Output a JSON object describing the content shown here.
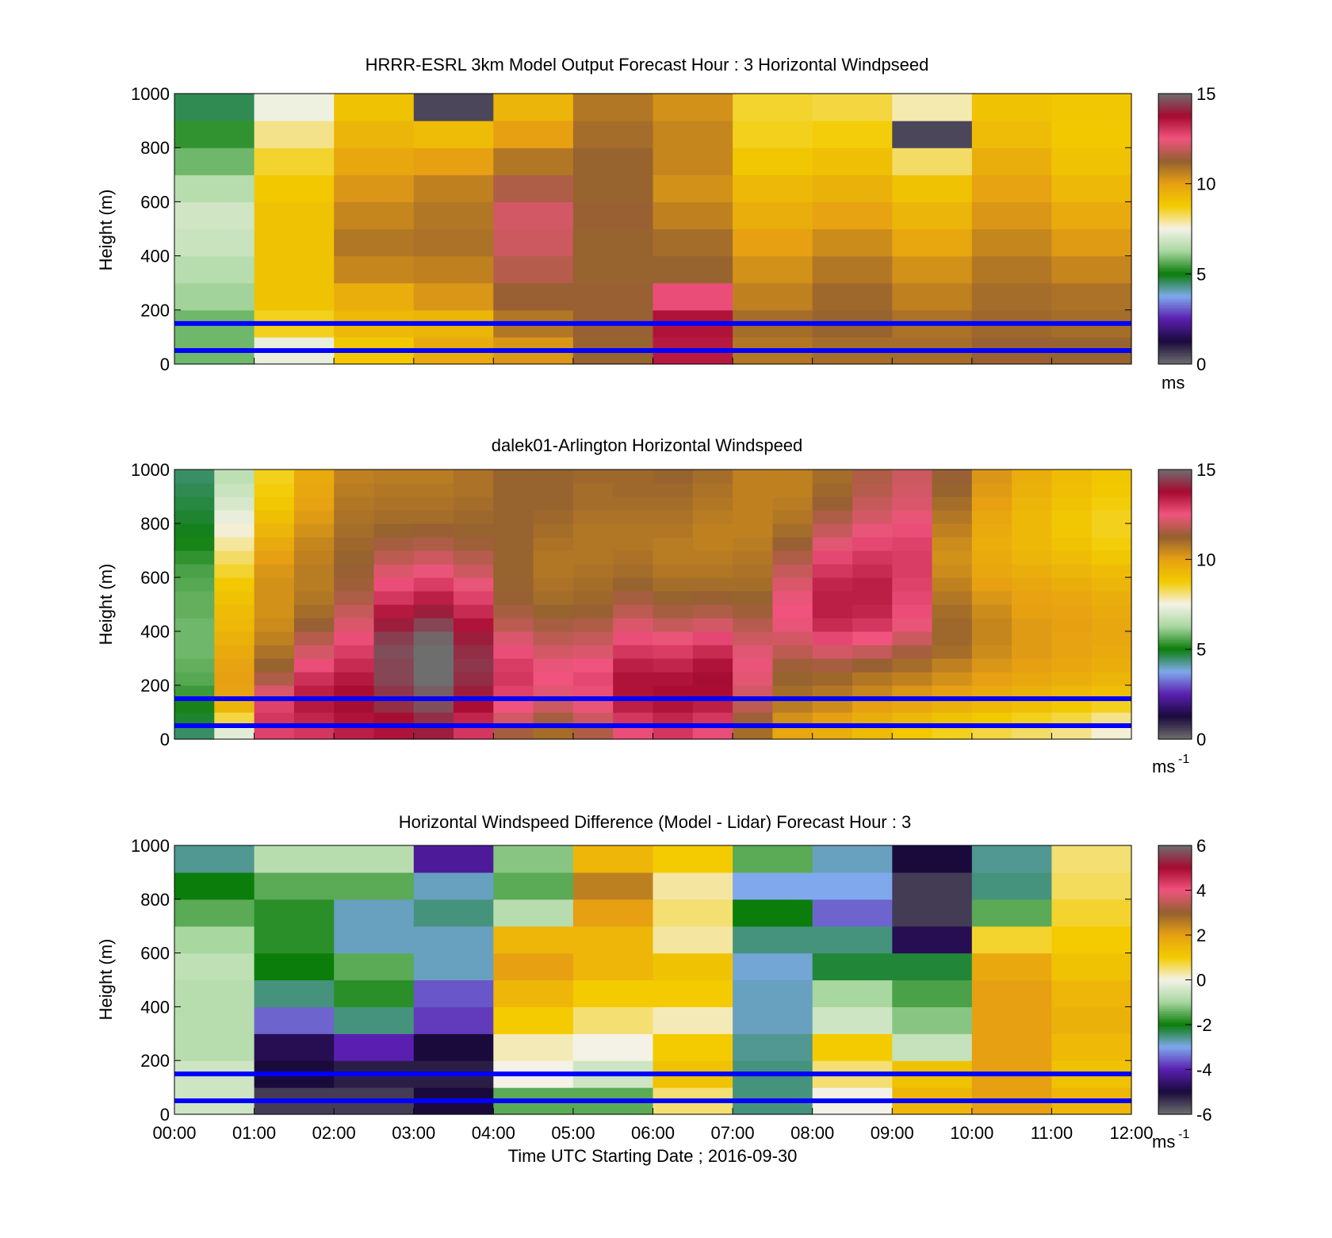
{
  "x_axis": {
    "ticks": [
      "00:00",
      "01:00",
      "02:00",
      "03:00",
      "04:00",
      "05:00",
      "06:00",
      "07:00",
      "08:00",
      "09:00",
      "10:00",
      "11:00",
      "12:00"
    ],
    "label": "Time UTC  Starting Date ; 2016-09-30"
  },
  "colorbar_palette": [
    "#6e6e6e",
    "#1a0a3c",
    "#5a1fb0",
    "#7fa9ec",
    "#0b7d0b",
    "#a8d7a0",
    "#f4f2e6",
    "#f3cb00",
    "#e6a012",
    "#946030",
    "#f0547e",
    "#a70a30",
    "#6e6e6e"
  ],
  "diff_palette": [
    "#6e6e6e",
    "#1a0a3c",
    "#5a1fb0",
    "#7fa9ec",
    "#0b7d0b",
    "#a8d7a0",
    "#f4f2e6",
    "#f3cb00",
    "#e6a012",
    "#946030",
    "#f0547e",
    "#a70a30",
    "#6e6e6e"
  ],
  "ref_line_color": "#0000ff",
  "chart_data": [
    {
      "type": "heatmap",
      "title": "HRRR-ESRL 3km Model Output   Forecast Hour : 3 Horizontal Windpseed",
      "ylabel": "Height (m)",
      "ylim": [
        0,
        1000
      ],
      "yticks": [
        "0",
        "200",
        "400",
        "600",
        "800",
        "1000"
      ],
      "colorbar": {
        "ticks": [
          "0",
          "5",
          "10",
          "15"
        ],
        "unit": "ms",
        "range": [
          0,
          15
        ]
      },
      "reference_lines_m": [
        50,
        150
      ],
      "x_hours": [
        0,
        1,
        2,
        3,
        4,
        5,
        6,
        7,
        8,
        9,
        10,
        11
      ],
      "heights_m": [
        50,
        150,
        250,
        350,
        450,
        550,
        650,
        750,
        850,
        950
      ],
      "values_ms": [
        [
          5.8,
          7.3,
          8.8,
          9.7,
          10.2,
          11.2,
          13.5,
          10.8,
          11.0,
          11.0,
          11.3,
          11.2
        ],
        [
          5.8,
          8.6,
          9.3,
          9.4,
          10.8,
          11.3,
          13.6,
          11.0,
          11.2,
          10.9,
          11.1,
          11.0
        ],
        [
          6.2,
          9.0,
          9.6,
          10.2,
          11.3,
          11.3,
          12.6,
          10.6,
          11.1,
          10.6,
          11.0,
          10.9
        ],
        [
          6.5,
          9.0,
          10.5,
          10.6,
          11.7,
          11.2,
          11.2,
          10.3,
          10.8,
          10.3,
          10.8,
          10.5
        ],
        [
          6.8,
          9.0,
          10.8,
          10.9,
          12.0,
          11.2,
          11.0,
          10.0,
          10.4,
          9.8,
          10.5,
          10.1
        ],
        [
          6.9,
          9.0,
          10.5,
          10.8,
          12.1,
          11.3,
          10.6,
          9.6,
          9.9,
          9.4,
          10.2,
          9.7
        ],
        [
          6.5,
          8.8,
          10.2,
          10.6,
          11.6,
          11.2,
          10.3,
          9.3,
          9.5,
          9.0,
          9.9,
          9.3
        ],
        [
          5.8,
          8.5,
          9.8,
          10.0,
          10.8,
          11.2,
          10.5,
          8.9,
          9.1,
          8.2,
          9.6,
          9.0
        ],
        [
          5.3,
          8.0,
          9.4,
          9.2,
          10.0,
          11.0,
          10.5,
          8.6,
          8.7,
          0.5,
          9.2,
          8.8
        ],
        [
          4.6,
          7.4,
          9.0,
          0.5,
          9.4,
          10.8,
          10.3,
          8.5,
          8.4,
          7.8,
          9.0,
          8.9
        ]
      ]
    },
    {
      "type": "heatmap",
      "title": "dalek01-Arlington  Horizontal Windspeed",
      "ylabel": "Height (m)",
      "ylim": [
        0,
        1000
      ],
      "yticks": [
        "0",
        "200",
        "400",
        "600",
        "800",
        "1000"
      ],
      "colorbar": {
        "ticks": [
          "0",
          "5",
          "10",
          "15"
        ],
        "unit": "ms",
        "unit_exp": "-1",
        "range": [
          0,
          15
        ]
      },
      "reference_lines_m": [
        50,
        150
      ],
      "x_hours": [
        0.25,
        0.75,
        1.25,
        1.75,
        2.25,
        2.75,
        3.25,
        3.75,
        4.25,
        4.75,
        5.25,
        5.75,
        6.25,
        6.75,
        7.25,
        7.75,
        8.25,
        8.75,
        9.25,
        9.75,
        10.25,
        10.75,
        11.25,
        11.75
      ],
      "heights_m": [
        25,
        75,
        125,
        175,
        225,
        275,
        325,
        375,
        425,
        475,
        525,
        575,
        625,
        675,
        725,
        775,
        825,
        875,
        925,
        975
      ],
      "values_ms": [
        [
          4.5,
          7.2,
          12.8,
          13.0,
          13.4,
          13.6,
          14.0,
          13.0,
          11.5,
          11.0,
          11.6,
          12.6,
          13.0,
          12.6,
          11.0,
          9.8,
          9.6,
          9.2,
          8.8,
          8.6,
          8.4,
          8.2,
          8.0,
          7.6
        ],
        [
          4.8,
          8.4,
          13.0,
          13.3,
          13.6,
          13.8,
          14.2,
          13.3,
          12.1,
          11.5,
          12.0,
          13.0,
          13.3,
          13.0,
          11.4,
          10.3,
          10.0,
          9.6,
          9.3,
          9.0,
          8.8,
          8.6,
          8.4,
          8.0
        ],
        [
          5.1,
          9.4,
          12.8,
          13.5,
          13.8,
          14.2,
          14.6,
          13.7,
          12.5,
          12.0,
          12.4,
          13.4,
          13.6,
          13.4,
          11.8,
          10.7,
          10.4,
          10.0,
          9.8,
          9.5,
          9.3,
          9.1,
          8.8,
          8.6
        ],
        [
          5.4,
          9.9,
          12.2,
          13.4,
          13.7,
          14.3,
          14.8,
          14.0,
          12.8,
          12.3,
          12.6,
          13.6,
          13.7,
          13.7,
          12.1,
          11.0,
          10.8,
          10.5,
          10.2,
          10.0,
          9.7,
          9.5,
          9.3,
          9.1
        ],
        [
          5.6,
          10.0,
          11.6,
          13.1,
          13.5,
          14.5,
          15.0,
          14.2,
          13.0,
          12.5,
          12.7,
          13.6,
          13.6,
          13.8,
          12.3,
          11.2,
          11.1,
          10.8,
          10.6,
          10.3,
          10.0,
          9.8,
          9.6,
          9.4
        ],
        [
          5.7,
          9.9,
          11.2,
          12.6,
          13.2,
          14.5,
          15.0,
          14.3,
          12.9,
          12.4,
          12.5,
          13.4,
          13.3,
          13.6,
          12.4,
          11.4,
          11.5,
          11.3,
          11.0,
          10.6,
          10.2,
          10.0,
          9.8,
          9.6
        ],
        [
          5.8,
          9.7,
          10.9,
          12.1,
          12.9,
          14.6,
          15.0,
          14.2,
          12.6,
          12.1,
          12.2,
          13.0,
          12.9,
          13.2,
          12.3,
          11.8,
          12.1,
          11.9,
          11.5,
          11.0,
          10.4,
          10.1,
          9.9,
          9.7
        ],
        [
          5.8,
          9.5,
          10.6,
          11.7,
          12.6,
          14.4,
          14.9,
          14.0,
          12.2,
          11.8,
          11.9,
          12.6,
          12.4,
          12.7,
          12.0,
          12.1,
          12.7,
          12.5,
          12.0,
          11.1,
          10.5,
          10.1,
          9.9,
          9.8
        ],
        [
          5.8,
          9.3,
          10.4,
          11.3,
          12.2,
          14.0,
          14.5,
          13.6,
          11.8,
          11.5,
          11.6,
          12.2,
          11.9,
          12.1,
          11.7,
          12.4,
          13.2,
          13.0,
          12.4,
          11.1,
          10.5,
          10.1,
          10.0,
          9.8
        ],
        [
          5.7,
          9.2,
          10.3,
          11.0,
          11.9,
          13.5,
          14.0,
          13.2,
          11.5,
          11.2,
          11.3,
          11.8,
          11.5,
          11.6,
          11.4,
          12.5,
          13.4,
          13.3,
          12.6,
          11.0,
          10.4,
          10.0,
          9.9,
          9.7
        ],
        [
          5.7,
          9.0,
          10.3,
          10.8,
          11.6,
          13.0,
          13.4,
          12.8,
          11.3,
          11.0,
          11.1,
          11.5,
          11.2,
          11.3,
          11.2,
          12.4,
          13.4,
          13.4,
          12.7,
          10.8,
          10.2,
          9.9,
          9.8,
          9.6
        ],
        [
          5.6,
          8.8,
          10.3,
          10.7,
          11.4,
          12.6,
          12.9,
          12.4,
          11.2,
          10.9,
          11.0,
          11.2,
          11.0,
          11.0,
          11.0,
          12.2,
          13.3,
          13.4,
          12.8,
          10.6,
          10.0,
          9.8,
          9.6,
          9.4
        ],
        [
          5.5,
          8.5,
          10.2,
          10.7,
          11.3,
          12.2,
          12.4,
          12.0,
          11.2,
          10.8,
          10.9,
          11.0,
          10.8,
          10.8,
          10.9,
          11.9,
          13.0,
          13.2,
          12.9,
          10.4,
          9.8,
          9.6,
          9.4,
          9.2
        ],
        [
          5.3,
          8.2,
          10.0,
          10.6,
          11.2,
          11.8,
          12.0,
          11.7,
          11.2,
          10.8,
          10.8,
          10.9,
          10.7,
          10.7,
          10.8,
          11.6,
          12.7,
          13.0,
          12.9,
          10.3,
          9.7,
          9.4,
          9.2,
          8.9
        ],
        [
          5.1,
          7.9,
          9.7,
          10.5,
          11.1,
          11.5,
          11.6,
          11.4,
          11.2,
          10.9,
          10.8,
          10.8,
          10.7,
          10.6,
          10.7,
          11.3,
          12.3,
          12.7,
          12.8,
          10.4,
          9.6,
          9.3,
          9.0,
          8.7
        ],
        [
          4.9,
          7.6,
          9.4,
          10.3,
          11.0,
          11.2,
          11.3,
          11.2,
          11.2,
          11.0,
          10.8,
          10.8,
          10.8,
          10.6,
          10.6,
          11.0,
          11.9,
          12.4,
          12.6,
          10.6,
          9.7,
          9.3,
          8.9,
          8.6
        ],
        [
          4.8,
          7.3,
          9.1,
          10.1,
          10.9,
          11.0,
          11.0,
          11.1,
          11.2,
          11.1,
          10.9,
          10.9,
          10.9,
          10.7,
          10.6,
          10.8,
          11.6,
          12.1,
          12.4,
          10.8,
          9.8,
          9.3,
          8.9,
          8.6
        ],
        [
          4.7,
          7.0,
          8.9,
          9.9,
          10.8,
          10.9,
          10.9,
          11.0,
          11.2,
          11.2,
          11.0,
          11.0,
          11.0,
          10.8,
          10.6,
          10.7,
          11.3,
          11.9,
          12.2,
          11.0,
          10.0,
          9.4,
          9.0,
          8.7
        ],
        [
          4.6,
          6.8,
          8.7,
          9.8,
          10.7,
          10.8,
          10.8,
          10.9,
          11.2,
          11.2,
          11.0,
          11.1,
          11.1,
          10.9,
          10.6,
          10.6,
          11.1,
          11.7,
          12.1,
          11.2,
          10.1,
          9.5,
          9.1,
          8.8
        ],
        [
          4.5,
          6.6,
          8.6,
          9.7,
          10.6,
          10.7,
          10.7,
          10.9,
          11.2,
          11.2,
          11.1,
          11.1,
          11.2,
          11.0,
          10.6,
          10.6,
          11.0,
          11.6,
          12.0,
          11.3,
          10.2,
          9.6,
          9.2,
          8.9
        ]
      ]
    },
    {
      "type": "heatmap",
      "title": "Horizontal Windspeed Difference (Model - Lidar) Forecast Hour : 3",
      "ylabel": "Height (m)",
      "ylim": [
        0,
        1000
      ],
      "yticks": [
        "0",
        "200",
        "400",
        "600",
        "800",
        "1000"
      ],
      "colorbar": {
        "ticks": [
          "-6",
          "-4",
          "-2",
          "0",
          "2",
          "4",
          "6"
        ],
        "unit": "ms",
        "unit_exp": "-1",
        "range": [
          -6,
          6
        ]
      },
      "reference_lines_m": [
        50,
        150
      ],
      "x_hours": [
        0,
        1,
        2,
        3,
        4,
        5,
        6,
        7,
        8,
        9,
        10,
        11
      ],
      "heights_m": [
        50,
        150,
        250,
        350,
        450,
        550,
        650,
        750,
        850,
        950
      ],
      "values_ms": [
        [
          -0.5,
          -5.5,
          -5.5,
          -5.0,
          -1.5,
          -1.5,
          0.5,
          -2.5,
          0.0,
          1.5,
          2.0,
          1.5
        ],
        [
          -0.5,
          -5.0,
          -5.2,
          -5.2,
          0.0,
          -0.5,
          1.2,
          -2.5,
          0.5,
          1.2,
          2.0,
          1.2
        ],
        [
          -0.8,
          -4.8,
          -4.0,
          -5.0,
          0.2,
          0.0,
          1.0,
          -2.6,
          1.0,
          -0.6,
          2.0,
          1.4
        ],
        [
          -0.8,
          -3.5,
          -2.5,
          -3.8,
          1.0,
          0.5,
          0.2,
          -2.8,
          -0.5,
          -1.2,
          2.0,
          1.6
        ],
        [
          -0.8,
          -2.5,
          -1.8,
          -3.6,
          1.5,
          1.0,
          1.0,
          -2.8,
          -1.0,
          -1.6,
          2.0,
          1.5
        ],
        [
          -0.7,
          -2.0,
          -1.5,
          -2.8,
          2.0,
          1.5,
          1.2,
          -2.9,
          -2.2,
          -2.2,
          1.8,
          1.2
        ],
        [
          -1.0,
          -1.8,
          -2.8,
          -2.8,
          1.5,
          1.5,
          0.3,
          -2.5,
          -2.5,
          -4.8,
          0.8,
          1.0
        ],
        [
          -1.5,
          -1.8,
          -2.8,
          -2.5,
          -0.8,
          2.0,
          0.5,
          -2.0,
          -3.5,
          -5.5,
          -1.5,
          0.8
        ],
        [
          -2.0,
          -1.5,
          -1.5,
          -2.8,
          -1.5,
          2.5,
          0.3,
          -3.0,
          -3.0,
          -5.5,
          -2.5,
          0.6
        ],
        [
          -2.6,
          -0.8,
          -0.8,
          -4.2,
          -1.2,
          1.5,
          1.0,
          -1.5,
          -2.8,
          -5.0,
          -2.6,
          0.5
        ]
      ]
    }
  ]
}
